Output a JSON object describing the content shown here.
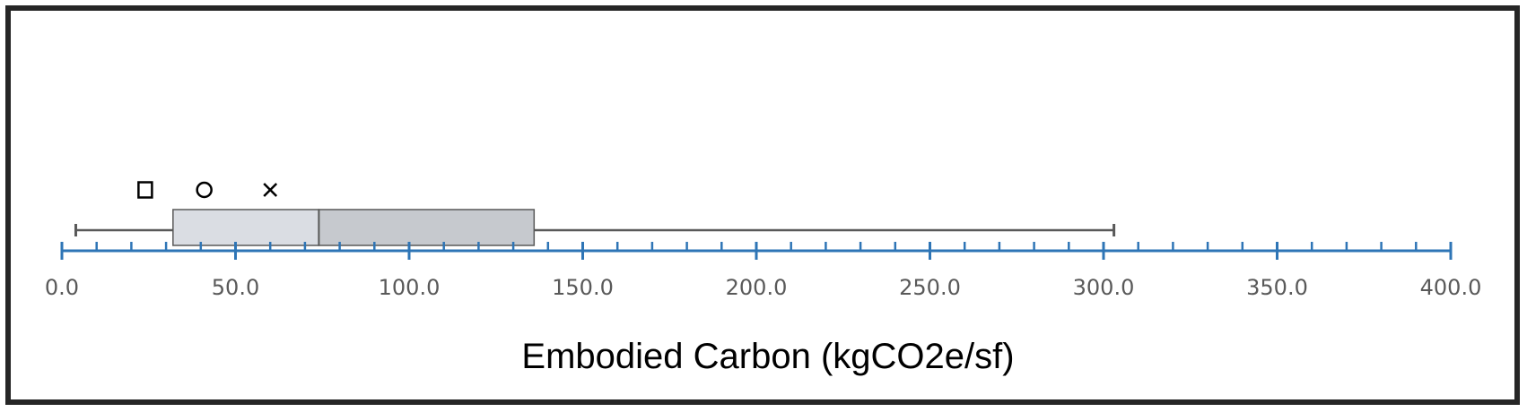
{
  "chart_data": {
    "type": "boxplot",
    "title": "",
    "xlabel": "Embodied Carbon (kgCO2e/sf)",
    "xlim": [
      0,
      400
    ],
    "major_ticks": [
      0,
      50,
      100,
      150,
      200,
      250,
      300,
      350,
      400
    ],
    "tick_labels": [
      "0.0",
      "50.0",
      "100.0",
      "150.0",
      "200.0",
      "250.0",
      "300.0",
      "350.0",
      "400.0"
    ],
    "minor_tick_step": 10,
    "box": {
      "whisker_low": 4,
      "q1": 32,
      "median": 74,
      "q3": 136,
      "whisker_high": 303
    },
    "markers": [
      {
        "symbol": "square",
        "value": 24
      },
      {
        "symbol": "circle",
        "value": 41
      },
      {
        "symbol": "cross",
        "value": 60
      }
    ],
    "colors": {
      "axis": "#2E75B6",
      "box_lower": "#DADDE3",
      "box_upper": "#C6C9CE",
      "box_stroke": "#595959",
      "whisker": "#595959",
      "marker": "#000000"
    }
  }
}
